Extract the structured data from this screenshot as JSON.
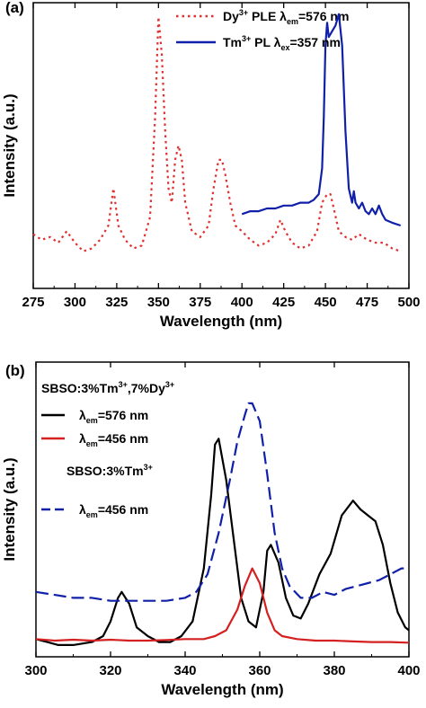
{
  "chart_data": [
    {
      "panel_label": "(a)",
      "type": "line",
      "xlabel": "Wavelength (nm)",
      "ylabel": "Intensity (a.u.)",
      "xlim": [
        275,
        500
      ],
      "ylim": [
        0,
        1.0
      ],
      "x_ticks": [
        275,
        300,
        325,
        350,
        375,
        400,
        425,
        450,
        475,
        500
      ],
      "legend_position": "top-right",
      "series": [
        {
          "name": "Dy3+ PLE λem=576 nm",
          "legend": {
            "pre": "Dy",
            "sup": "3+",
            "mid": " PLE λ",
            "sub": "em",
            "post": "=576 nm"
          },
          "color": "#e03030",
          "style": "dotted",
          "points": [
            [
              275,
              0.19
            ],
            [
              280,
              0.17
            ],
            [
              285,
              0.18
            ],
            [
              290,
              0.16
            ],
            [
              295,
              0.2
            ],
            [
              300,
              0.16
            ],
            [
              305,
              0.13
            ],
            [
              310,
              0.14
            ],
            [
              315,
              0.17
            ],
            [
              320,
              0.22
            ],
            [
              323,
              0.35
            ],
            [
              326,
              0.22
            ],
            [
              330,
              0.17
            ],
            [
              335,
              0.14
            ],
            [
              340,
              0.15
            ],
            [
              345,
              0.25
            ],
            [
              348,
              0.6
            ],
            [
              350,
              0.95
            ],
            [
              352,
              0.82
            ],
            [
              354,
              0.55
            ],
            [
              356,
              0.35
            ],
            [
              358,
              0.3
            ],
            [
              360,
              0.45
            ],
            [
              362,
              0.5
            ],
            [
              364,
              0.45
            ],
            [
              366,
              0.3
            ],
            [
              370,
              0.2
            ],
            [
              375,
              0.18
            ],
            [
              380,
              0.22
            ],
            [
              383,
              0.35
            ],
            [
              386,
              0.45
            ],
            [
              388,
              0.45
            ],
            [
              390,
              0.4
            ],
            [
              393,
              0.3
            ],
            [
              396,
              0.22
            ],
            [
              400,
              0.2
            ],
            [
              405,
              0.17
            ],
            [
              410,
              0.15
            ],
            [
              415,
              0.16
            ],
            [
              420,
              0.19
            ],
            [
              423,
              0.24
            ],
            [
              426,
              0.2
            ],
            [
              430,
              0.16
            ],
            [
              435,
              0.14
            ],
            [
              440,
              0.15
            ],
            [
              445,
              0.2
            ],
            [
              448,
              0.3
            ],
            [
              451,
              0.33
            ],
            [
              453,
              0.33
            ],
            [
              455,
              0.28
            ],
            [
              458,
              0.2
            ],
            [
              462,
              0.18
            ],
            [
              466,
              0.17
            ],
            [
              470,
              0.19
            ],
            [
              475,
              0.17
            ],
            [
              480,
              0.16
            ],
            [
              485,
              0.16
            ],
            [
              490,
              0.14
            ],
            [
              495,
              0.13
            ]
          ]
        },
        {
          "name": "Tm3+ PL λex=357 nm",
          "legend": {
            "pre": "Tm",
            "sup": "3+",
            "mid": " PL λ",
            "sub": "ex",
            "post": "=357 nm"
          },
          "color": "#1020a8",
          "style": "solid",
          "points": [
            [
              400,
              0.26
            ],
            [
              405,
              0.27
            ],
            [
              410,
              0.27
            ],
            [
              415,
              0.28
            ],
            [
              420,
              0.28
            ],
            [
              425,
              0.29
            ],
            [
              430,
              0.29
            ],
            [
              435,
              0.3
            ],
            [
              440,
              0.3
            ],
            [
              443,
              0.31
            ],
            [
              446,
              0.33
            ],
            [
              448,
              0.42
            ],
            [
              449,
              0.6
            ],
            [
              450,
              0.85
            ],
            [
              451,
              0.93
            ],
            [
              452,
              0.88
            ],
            [
              454,
              0.9
            ],
            [
              456,
              0.92
            ],
            [
              458,
              0.96
            ],
            [
              460,
              0.85
            ],
            [
              462,
              0.55
            ],
            [
              464,
              0.35
            ],
            [
              466,
              0.3
            ],
            [
              467,
              0.34
            ],
            [
              468,
              0.3
            ],
            [
              470,
              0.28
            ],
            [
              472,
              0.3
            ],
            [
              474,
              0.27
            ],
            [
              476,
              0.26
            ],
            [
              478,
              0.28
            ],
            [
              480,
              0.26
            ],
            [
              482,
              0.29
            ],
            [
              484,
              0.26
            ],
            [
              486,
              0.24
            ],
            [
              490,
              0.23
            ],
            [
              495,
              0.22
            ]
          ]
        }
      ]
    },
    {
      "panel_label": "(b)",
      "type": "line",
      "xlabel": "Wavelength (nm)",
      "ylabel": "Intensity (a.u.)",
      "xlim": [
        300,
        400
      ],
      "ylim": [
        0,
        1.0
      ],
      "x_ticks": [
        300,
        320,
        340,
        360,
        380,
        400
      ],
      "legend_position": "top-left",
      "legend_groups": [
        {
          "title": {
            "pre": "SBSO:3%Tm",
            "sup1": "3+",
            "mid": ",7%Dy",
            "sup2": "3+"
          }
        },
        {
          "title": {
            "pre": "SBSO:3%Tm",
            "sup1": "3+",
            "mid": "",
            "sup2": ""
          }
        }
      ],
      "series": [
        {
          "name": "λem=576 nm",
          "legend": {
            "pre": "λ",
            "sub": "em",
            "post": "=576 nm"
          },
          "group": 0,
          "color": "#000000",
          "style": "solid",
          "points": [
            [
              300,
              0.06
            ],
            [
              303,
              0.05
            ],
            [
              306,
              0.04
            ],
            [
              310,
              0.04
            ],
            [
              315,
              0.05
            ],
            [
              318,
              0.07
            ],
            [
              320,
              0.12
            ],
            [
              322,
              0.2
            ],
            [
              323,
              0.22
            ],
            [
              325,
              0.18
            ],
            [
              327,
              0.1
            ],
            [
              330,
              0.07
            ],
            [
              333,
              0.05
            ],
            [
              336,
              0.05
            ],
            [
              339,
              0.07
            ],
            [
              342,
              0.12
            ],
            [
              345,
              0.3
            ],
            [
              347,
              0.55
            ],
            [
              348,
              0.72
            ],
            [
              349,
              0.74
            ],
            [
              351,
              0.6
            ],
            [
              353,
              0.4
            ],
            [
              355,
              0.2
            ],
            [
              357,
              0.12
            ],
            [
              359,
              0.1
            ],
            [
              361,
              0.22
            ],
            [
              362,
              0.36
            ],
            [
              363,
              0.38
            ],
            [
              365,
              0.32
            ],
            [
              367,
              0.2
            ],
            [
              369,
              0.14
            ],
            [
              371,
              0.13
            ],
            [
              373,
              0.18
            ],
            [
              376,
              0.28
            ],
            [
              379,
              0.35
            ],
            [
              382,
              0.48
            ],
            [
              385,
              0.53
            ],
            [
              387,
              0.5
            ],
            [
              389,
              0.48
            ],
            [
              391,
              0.46
            ],
            [
              393,
              0.38
            ],
            [
              395,
              0.25
            ],
            [
              397,
              0.15
            ],
            [
              399,
              0.1
            ],
            [
              400,
              0.09
            ]
          ]
        },
        {
          "name": "λem=456 nm",
          "legend": {
            "pre": "λ",
            "sub": "em",
            "post": "=456 nm"
          },
          "group": 0,
          "color": "#d42020",
          "style": "solid",
          "points": [
            [
              300,
              0.06
            ],
            [
              305,
              0.055
            ],
            [
              310,
              0.058
            ],
            [
              315,
              0.055
            ],
            [
              320,
              0.058
            ],
            [
              325,
              0.055
            ],
            [
              330,
              0.055
            ],
            [
              335,
              0.057
            ],
            [
              340,
              0.06
            ],
            [
              345,
              0.06
            ],
            [
              348,
              0.07
            ],
            [
              351,
              0.09
            ],
            [
              354,
              0.16
            ],
            [
              356,
              0.24
            ],
            [
              358,
              0.3
            ],
            [
              360,
              0.25
            ],
            [
              362,
              0.15
            ],
            [
              364,
              0.09
            ],
            [
              366,
              0.07
            ],
            [
              370,
              0.06
            ],
            [
              375,
              0.055
            ],
            [
              380,
              0.055
            ],
            [
              385,
              0.052
            ],
            [
              390,
              0.05
            ],
            [
              395,
              0.05
            ],
            [
              400,
              0.048
            ]
          ]
        },
        {
          "name": "λem=456 nm",
          "legend": {
            "pre": "λ",
            "sub": "em",
            "post": "=456 nm"
          },
          "group": 1,
          "color": "#1020a8",
          "style": "dashed",
          "points": [
            [
              300,
              0.22
            ],
            [
              305,
              0.21
            ],
            [
              310,
              0.2
            ],
            [
              315,
              0.2
            ],
            [
              320,
              0.19
            ],
            [
              325,
              0.19
            ],
            [
              330,
              0.19
            ],
            [
              335,
              0.19
            ],
            [
              340,
              0.2
            ],
            [
              343,
              0.22
            ],
            [
              346,
              0.28
            ],
            [
              349,
              0.42
            ],
            [
              352,
              0.6
            ],
            [
              354,
              0.73
            ],
            [
              356,
              0.82
            ],
            [
              357,
              0.86
            ],
            [
              358,
              0.86
            ],
            [
              360,
              0.8
            ],
            [
              362,
              0.62
            ],
            [
              364,
              0.42
            ],
            [
              366,
              0.3
            ],
            [
              368,
              0.24
            ],
            [
              371,
              0.2
            ],
            [
              374,
              0.2
            ],
            [
              377,
              0.22
            ],
            [
              380,
              0.21
            ],
            [
              383,
              0.23
            ],
            [
              386,
              0.24
            ],
            [
              389,
              0.25
            ],
            [
              392,
              0.26
            ],
            [
              395,
              0.28
            ],
            [
              398,
              0.3
            ],
            [
              400,
              0.3
            ]
          ]
        }
      ]
    }
  ]
}
